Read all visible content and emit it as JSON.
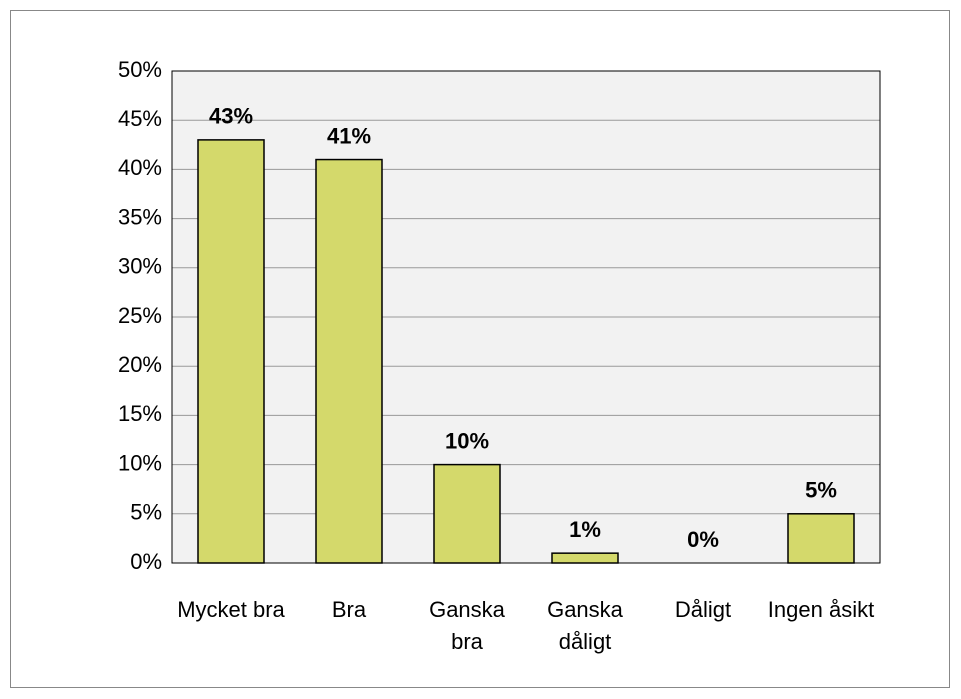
{
  "chart_data": {
    "type": "bar",
    "categories": [
      "Mycket bra",
      "Bra",
      "Ganska bra",
      "Ganska dåligt",
      "Dåligt",
      "Ingen åsikt"
    ],
    "values": [
      43,
      41,
      10,
      1,
      0,
      5
    ],
    "value_labels": [
      "43%",
      "41%",
      "10%",
      "1%",
      "0%",
      "5%"
    ],
    "color": "#d4d96b",
    "ylim": [
      0,
      50
    ],
    "yticks": [
      {
        "value": 0,
        "label": "0%"
      },
      {
        "value": 5,
        "label": "5%"
      },
      {
        "value": 10,
        "label": "10%"
      },
      {
        "value": 15,
        "label": "15%"
      },
      {
        "value": 20,
        "label": "20%"
      },
      {
        "value": 25,
        "label": "25%"
      },
      {
        "value": 30,
        "label": "30%"
      },
      {
        "value": 35,
        "label": "35%"
      },
      {
        "value": 40,
        "label": "40%"
      },
      {
        "value": 45,
        "label": "45%"
      },
      {
        "value": 50,
        "label": "50%"
      }
    ],
    "grid": true
  }
}
